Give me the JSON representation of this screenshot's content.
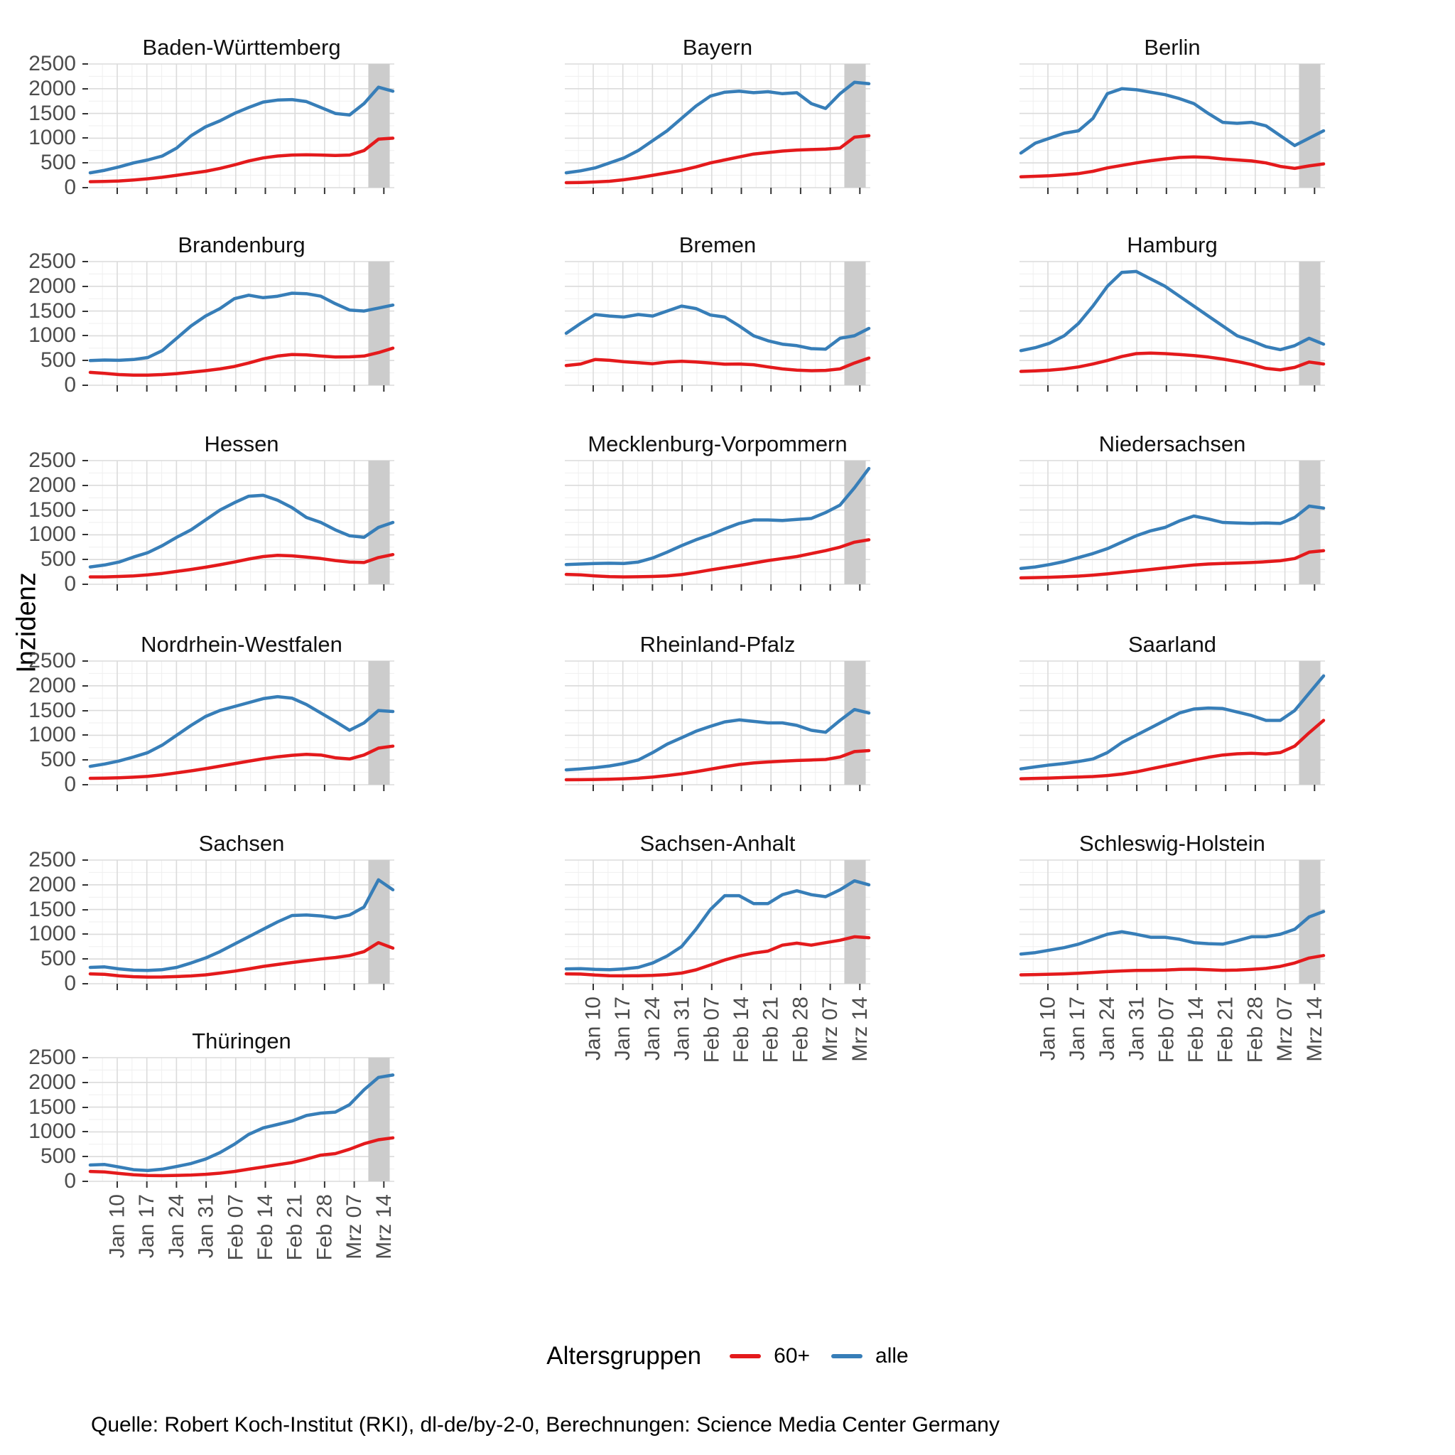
{
  "figure": {
    "ylabel": "Inzidenz",
    "legend": {
      "title": "Altersgruppen",
      "items": [
        {
          "label": "60+",
          "color": "#E41A1C"
        },
        {
          "label": "alle",
          "color": "#377EB8"
        }
      ]
    },
    "footer": "Quelle: Robert Koch-Institut (RKI), dl-de/by-2-0, Berechnungen: Science Media Center Germany"
  },
  "chart_data": {
    "type": "line",
    "title": "",
    "ylabel": "Inzidenz",
    "xlabel": "",
    "ylim": [
      0,
      2500
    ],
    "y_ticks": [
      0,
      500,
      1000,
      1500,
      2000,
      2500
    ],
    "x_ticks": [
      "Jan 10",
      "Jan 17",
      "Jan 24",
      "Jan 31",
      "Feb 07",
      "Feb 14",
      "Feb 21",
      "Feb 28",
      "Mrz 07",
      "Mrz 14"
    ],
    "grid": "major and minor, light gray on white",
    "legend_position": "bottom",
    "legend_title": "Altersgruppen",
    "series_labels": [
      "60+",
      "alle"
    ],
    "colors": {
      "60+": "#E41A1C",
      "alle": "#377EB8"
    },
    "highlight_band": {
      "x_start_frac": 0.915,
      "x_end_frac": 0.985,
      "color": "#CCCCCC"
    },
    "x_sampling_note": "22 samples per series, evenly spaced Jan 03 - Mrz 16",
    "panels": [
      {
        "name": "Baden-Württemberg",
        "alle": [
          300,
          350,
          420,
          500,
          560,
          640,
          800,
          1050,
          1230,
          1350,
          1500,
          1620,
          1730,
          1770,
          1780,
          1740,
          1620,
          1500,
          1470,
          1700,
          2030,
          1950
        ],
        "60plus": [
          120,
          125,
          135,
          155,
          180,
          210,
          250,
          290,
          330,
          390,
          460,
          540,
          600,
          640,
          660,
          665,
          660,
          650,
          660,
          750,
          980,
          1000
        ]
      },
      {
        "name": "Bayern",
        "alle": [
          300,
          340,
          400,
          500,
          600,
          750,
          950,
          1150,
          1400,
          1650,
          1850,
          1930,
          1950,
          1920,
          1940,
          1900,
          1920,
          1700,
          1600,
          1900,
          2130,
          2100
        ],
        "60plus": [
          100,
          105,
          115,
          130,
          160,
          200,
          250,
          300,
          350,
          420,
          500,
          560,
          620,
          680,
          710,
          740,
          760,
          770,
          780,
          800,
          1020,
          1050
        ]
      },
      {
        "name": "Berlin",
        "alle": [
          700,
          900,
          1000,
          1100,
          1150,
          1400,
          1900,
          2000,
          1980,
          1930,
          1880,
          1800,
          1700,
          1500,
          1320,
          1300,
          1320,
          1250,
          1050,
          850,
          1000,
          1150
        ],
        "60plus": [
          220,
          230,
          240,
          260,
          285,
          330,
          400,
          450,
          500,
          545,
          580,
          610,
          620,
          610,
          580,
          560,
          540,
          500,
          430,
          390,
          440,
          480
        ]
      },
      {
        "name": "Brandenburg",
        "alle": [
          500,
          510,
          505,
          520,
          560,
          700,
          950,
          1200,
          1400,
          1550,
          1750,
          1820,
          1770,
          1800,
          1860,
          1850,
          1800,
          1650,
          1520,
          1500,
          1560,
          1620
        ],
        "60plus": [
          260,
          240,
          215,
          205,
          205,
          215,
          235,
          265,
          295,
          330,
          380,
          450,
          530,
          590,
          620,
          615,
          590,
          570,
          575,
          590,
          660,
          750
        ]
      },
      {
        "name": "Bremen",
        "alle": [
          1050,
          1250,
          1430,
          1400,
          1380,
          1430,
          1400,
          1500,
          1600,
          1550,
          1420,
          1380,
          1200,
          1000,
          900,
          830,
          800,
          740,
          730,
          950,
          1000,
          1150
        ],
        "60plus": [
          400,
          430,
          520,
          505,
          475,
          455,
          435,
          470,
          485,
          470,
          450,
          425,
          430,
          415,
          370,
          330,
          305,
          295,
          300,
          330,
          450,
          550
        ]
      },
      {
        "name": "Hamburg",
        "alle": [
          700,
          760,
          850,
          1000,
          1250,
          1600,
          2000,
          2280,
          2300,
          2150,
          2000,
          1800,
          1600,
          1400,
          1200,
          1000,
          900,
          780,
          720,
          800,
          950,
          830
        ],
        "60plus": [
          280,
          290,
          305,
          330,
          370,
          430,
          500,
          580,
          640,
          650,
          640,
          620,
          600,
          570,
          530,
          480,
          420,
          340,
          310,
          360,
          470,
          430
        ]
      },
      {
        "name": "Hessen",
        "alle": [
          350,
          390,
          450,
          550,
          640,
          780,
          950,
          1100,
          1300,
          1500,
          1650,
          1780,
          1800,
          1700,
          1550,
          1350,
          1250,
          1100,
          980,
          950,
          1150,
          1250
        ],
        "60plus": [
          150,
          150,
          158,
          170,
          190,
          220,
          260,
          300,
          345,
          395,
          450,
          510,
          560,
          585,
          575,
          550,
          520,
          480,
          450,
          440,
          540,
          600
        ]
      },
      {
        "name": "Mecklenburg-Vorpommern",
        "alle": [
          400,
          410,
          420,
          425,
          420,
          450,
          530,
          650,
          780,
          900,
          1000,
          1120,
          1230,
          1300,
          1300,
          1290,
          1310,
          1330,
          1450,
          1600,
          1950,
          2340
        ],
        "60plus": [
          200,
          190,
          170,
          155,
          150,
          152,
          158,
          170,
          195,
          240,
          290,
          335,
          380,
          430,
          480,
          520,
          560,
          620,
          680,
          750,
          850,
          900
        ]
      },
      {
        "name": "Niedersachsen",
        "alle": [
          320,
          350,
          400,
          460,
          540,
          620,
          720,
          850,
          980,
          1080,
          1150,
          1280,
          1380,
          1320,
          1250,
          1240,
          1230,
          1240,
          1230,
          1350,
          1580,
          1540
        ],
        "60plus": [
          130,
          135,
          142,
          152,
          165,
          185,
          210,
          240,
          270,
          300,
          330,
          360,
          390,
          410,
          420,
          430,
          440,
          455,
          475,
          520,
          650,
          680
        ]
      },
      {
        "name": "Nordrhein-Westfalen",
        "alle": [
          370,
          420,
          480,
          560,
          650,
          800,
          1000,
          1200,
          1380,
          1500,
          1580,
          1660,
          1740,
          1780,
          1750,
          1620,
          1450,
          1280,
          1100,
          1250,
          1500,
          1480
        ],
        "60plus": [
          130,
          132,
          140,
          152,
          170,
          200,
          240,
          280,
          325,
          375,
          425,
          475,
          525,
          565,
          595,
          615,
          600,
          545,
          520,
          600,
          740,
          780
        ]
      },
      {
        "name": "Rheinland-Pfalz",
        "alle": [
          300,
          320,
          345,
          380,
          430,
          500,
          650,
          820,
          950,
          1080,
          1180,
          1270,
          1310,
          1280,
          1250,
          1250,
          1200,
          1100,
          1060,
          1300,
          1520,
          1450
        ],
        "60plus": [
          100,
          102,
          106,
          112,
          120,
          132,
          155,
          185,
          220,
          265,
          315,
          365,
          410,
          440,
          460,
          475,
          490,
          500,
          510,
          560,
          670,
          690
        ]
      },
      {
        "name": "Saarland",
        "alle": [
          320,
          360,
          400,
          430,
          470,
          520,
          650,
          850,
          1000,
          1150,
          1300,
          1450,
          1530,
          1550,
          1540,
          1470,
          1400,
          1300,
          1300,
          1500,
          1850,
          2200
        ],
        "60plus": [
          120,
          128,
          135,
          145,
          155,
          165,
          185,
          215,
          260,
          320,
          380,
          440,
          500,
          555,
          600,
          625,
          635,
          620,
          650,
          780,
          1050,
          1300
        ]
      },
      {
        "name": "Sachsen",
        "alle": [
          330,
          340,
          300,
          275,
          270,
          285,
          330,
          420,
          520,
          650,
          800,
          950,
          1100,
          1250,
          1380,
          1390,
          1370,
          1330,
          1390,
          1550,
          2100,
          1900
        ],
        "60plus": [
          200,
          190,
          160,
          142,
          135,
          137,
          145,
          158,
          180,
          215,
          255,
          300,
          350,
          390,
          430,
          465,
          500,
          530,
          570,
          650,
          830,
          720
        ]
      },
      {
        "name": "Sachsen-Anhalt",
        "alle": [
          300,
          305,
          290,
          285,
          300,
          330,
          420,
          560,
          750,
          1100,
          1500,
          1780,
          1780,
          1620,
          1620,
          1800,
          1880,
          1800,
          1760,
          1900,
          2080,
          2000
        ],
        "60plus": [
          200,
          195,
          175,
          162,
          160,
          162,
          170,
          185,
          215,
          280,
          380,
          480,
          560,
          620,
          660,
          780,
          820,
          780,
          830,
          880,
          950,
          930
        ]
      },
      {
        "name": "Schleswig-Holstein",
        "alle": [
          600,
          630,
          680,
          730,
          800,
          900,
          1000,
          1050,
          1000,
          940,
          940,
          900,
          830,
          810,
          800,
          870,
          950,
          950,
          1000,
          1100,
          1350,
          1460
        ],
        "60plus": [
          180,
          185,
          192,
          200,
          212,
          228,
          245,
          258,
          268,
          272,
          278,
          290,
          295,
          285,
          272,
          278,
          292,
          310,
          350,
          420,
          520,
          570
        ]
      },
      {
        "name": "Thüringen",
        "alle": [
          330,
          340,
          290,
          235,
          220,
          245,
          300,
          360,
          450,
          580,
          750,
          950,
          1080,
          1150,
          1220,
          1330,
          1380,
          1400,
          1550,
          1850,
          2100,
          2150
        ],
        "60plus": [
          200,
          190,
          160,
          132,
          118,
          115,
          120,
          128,
          142,
          165,
          200,
          245,
          290,
          335,
          380,
          450,
          530,
          560,
          650,
          760,
          840,
          880
        ]
      }
    ]
  }
}
